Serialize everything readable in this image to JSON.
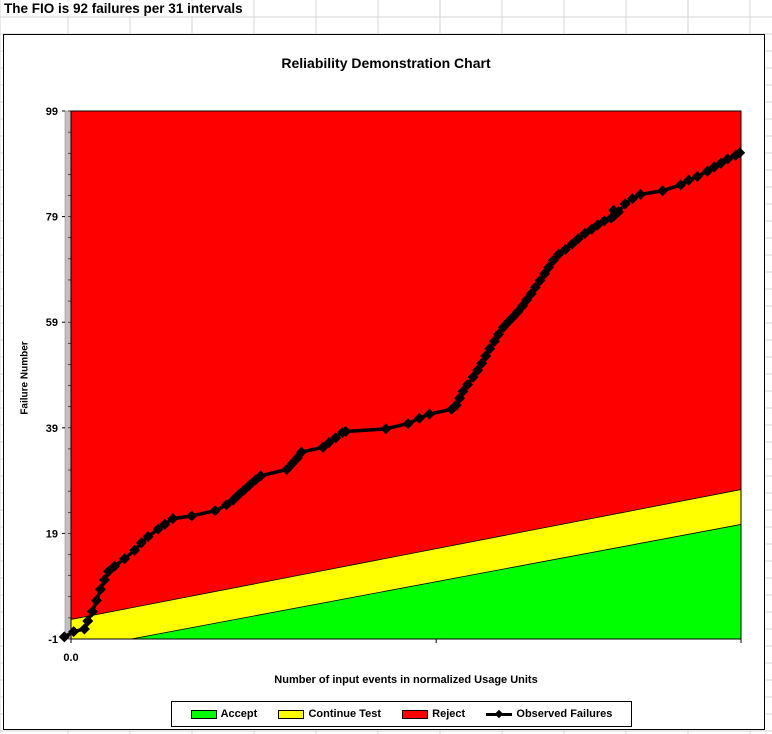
{
  "banner_text": "The FIO is 92 failures per 31 intervals",
  "chart_data": {
    "type": "line",
    "title": "Reliability Demonstration Chart",
    "xlabel": "Number of input events in normalized Usage Units",
    "ylabel": "Failure Number",
    "xlim": [
      0,
      1
    ],
    "ylim": [
      -1,
      99
    ],
    "y_ticks": [
      99,
      79,
      59,
      39,
      19,
      -1
    ],
    "x_tick_labels": [
      "0.0"
    ],
    "grid": false,
    "legend_position": "bottom",
    "colors": {
      "reject": "#ff0000",
      "continue": "#ffff00",
      "accept": "#00ff00",
      "observed": "#000000"
    },
    "regions": {
      "reject_continue_boundary": [
        [
          0,
          2.7
        ],
        [
          1,
          27.3
        ]
      ],
      "continue_accept_boundary": [
        [
          0.09,
          -1
        ],
        [
          1,
          20.7
        ]
      ]
    },
    "series": [
      {
        "name": "Observed Failures",
        "points": [
          [
            -0.01,
            -0.6
          ],
          [
            0.004,
            0.4
          ],
          [
            0.02,
            0.9
          ],
          [
            0.025,
            2.4
          ],
          [
            0.032,
            4.2
          ],
          [
            0.038,
            6.3
          ],
          [
            0.044,
            8.4
          ],
          [
            0.05,
            10.2
          ],
          [
            0.056,
            11.8
          ],
          [
            0.065,
            12.8
          ],
          [
            0.08,
            14.2
          ],
          [
            0.095,
            15.8
          ],
          [
            0.105,
            17.2
          ],
          [
            0.115,
            18.4
          ],
          [
            0.13,
            19.8
          ],
          [
            0.14,
            20.7
          ],
          [
            0.152,
            21.8
          ],
          [
            0.18,
            22.3
          ],
          [
            0.215,
            23.3
          ],
          [
            0.232,
            24.4
          ],
          [
            0.242,
            25.3
          ],
          [
            0.25,
            26.3
          ],
          [
            0.258,
            27.2
          ],
          [
            0.266,
            28.1
          ],
          [
            0.275,
            29.1
          ],
          [
            0.283,
            29.9
          ],
          [
            0.322,
            31.1
          ],
          [
            0.33,
            32.2
          ],
          [
            0.338,
            33.3
          ],
          [
            0.344,
            34.4
          ],
          [
            0.376,
            35.3
          ],
          [
            0.385,
            36.2
          ],
          [
            0.395,
            37.1
          ],
          [
            0.405,
            38.1
          ],
          [
            0.41,
            38.3
          ],
          [
            0.47,
            38.8
          ],
          [
            0.503,
            39.8
          ],
          [
            0.52,
            40.8
          ],
          [
            0.535,
            41.6
          ],
          [
            0.568,
            42.5
          ],
          [
            0.575,
            43.3
          ],
          [
            0.58,
            44.6
          ],
          [
            0.585,
            45.9
          ],
          [
            0.592,
            47.2
          ],
          [
            0.6,
            48.6
          ],
          [
            0.607,
            49.9
          ],
          [
            0.613,
            51.2
          ],
          [
            0.619,
            52.6
          ],
          [
            0.625,
            54.0
          ],
          [
            0.632,
            55.4
          ],
          [
            0.638,
            56.7
          ],
          [
            0.645,
            58.0
          ],
          [
            0.652,
            59.0
          ],
          [
            0.66,
            60.0
          ],
          [
            0.667,
            61.0
          ],
          [
            0.674,
            62.1
          ],
          [
            0.68,
            63.2
          ],
          [
            0.687,
            64.4
          ],
          [
            0.693,
            65.6
          ],
          [
            0.7,
            66.9
          ],
          [
            0.707,
            68.2
          ],
          [
            0.713,
            69.4
          ],
          [
            0.72,
            70.7
          ],
          [
            0.728,
            71.9
          ],
          [
            0.738,
            72.8
          ],
          [
            0.748,
            73.8
          ],
          [
            0.757,
            74.8
          ],
          [
            0.767,
            75.8
          ],
          [
            0.777,
            76.6
          ],
          [
            0.786,
            77.4
          ],
          [
            0.796,
            78.2
          ],
          [
            0.806,
            78.7
          ],
          [
            0.81,
            79.1
          ],
          [
            0.81,
            80.2
          ],
          [
            0.817,
            79.9
          ],
          [
            0.827,
            81.4
          ],
          [
            0.838,
            82.4
          ],
          [
            0.85,
            83.2
          ],
          [
            0.883,
            83.9
          ],
          [
            0.91,
            85.0
          ],
          [
            0.922,
            85.9
          ],
          [
            0.935,
            86.6
          ],
          [
            0.95,
            87.6
          ],
          [
            0.96,
            88.4
          ],
          [
            0.97,
            89.1
          ],
          [
            0.98,
            89.9
          ],
          [
            0.992,
            90.6
          ],
          [
            0.998,
            91.1
          ]
        ]
      }
    ],
    "legend": [
      "Accept",
      "Continue Test",
      "Reject",
      "Observed Failures"
    ]
  }
}
